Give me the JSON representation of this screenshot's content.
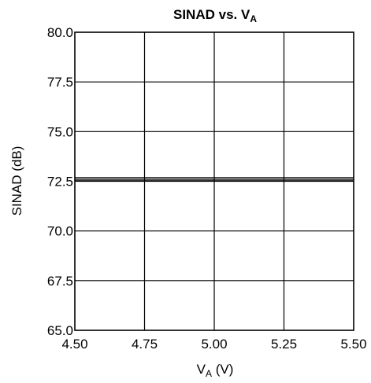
{
  "chart_data": {
    "type": "line",
    "title": {
      "main": "SINAD vs. V",
      "sub": "A"
    },
    "xlabel": {
      "main": "V",
      "sub": "A",
      "suffix": " (V)"
    },
    "ylabel": "SINAD (dB)",
    "xlim": [
      4.5,
      5.5
    ],
    "ylim": [
      65.0,
      80.0
    ],
    "x_ticks": [
      4.5,
      4.75,
      5.0,
      5.25,
      5.5
    ],
    "x_tick_labels": [
      "4.50",
      "4.75",
      "5.00",
      "5.25",
      "5.50"
    ],
    "y_ticks": [
      65.0,
      67.5,
      70.0,
      72.5,
      75.0,
      77.5,
      80.0
    ],
    "y_tick_labels": [
      "65.0",
      "67.5",
      "70.0",
      "72.5",
      "75.0",
      "77.5",
      "80.0"
    ],
    "grid": true,
    "series": [
      {
        "x": [
          4.5,
          5.5
        ],
        "y": [
          72.67,
          72.67
        ]
      },
      {
        "x": [
          4.5,
          5.5
        ],
        "y": [
          72.56,
          72.56
        ]
      }
    ],
    "colors": {
      "line": "#000000",
      "grid": "#000000",
      "background": "#ffffff"
    }
  }
}
